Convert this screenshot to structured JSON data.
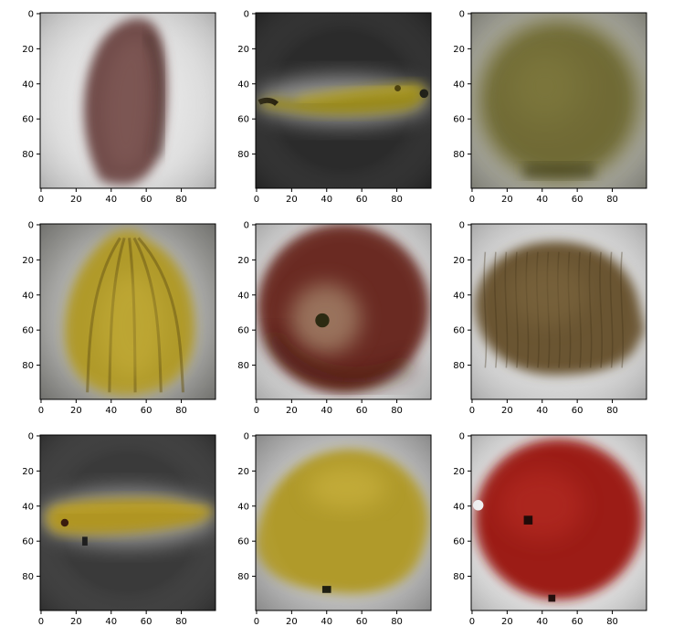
{
  "figure": {
    "layout": "3x3 grid of image subplots",
    "background": "#ffffff"
  },
  "chart_data": [
    {
      "type": "image",
      "subject": "purple elongated fruit",
      "xlim": [
        0,
        99
      ],
      "ylim": [
        99,
        0
      ],
      "xticks": [
        "0",
        "20",
        "40",
        "60",
        "80"
      ],
      "yticks": [
        "0",
        "20",
        "40",
        "60",
        "80"
      ],
      "colors": {
        "bg": "#d6d6d6",
        "fruit": "#6e4a47",
        "fruit_light": "#8e6662",
        "fruit_dark": "#3f2a28"
      }
    },
    {
      "type": "image",
      "subject": "banana, horizontal",
      "xlim": [
        0,
        99
      ],
      "ylim": [
        99,
        0
      ],
      "xticks": [
        "0",
        "20",
        "40",
        "60",
        "80"
      ],
      "yticks": [
        "0",
        "20",
        "40",
        "60",
        "80"
      ],
      "colors": {
        "bg": "#2b2b2b",
        "fruit": "#9a8a1f",
        "fruit_light": "#c8b43a",
        "fruit_dark": "#4d420e"
      }
    },
    {
      "type": "image",
      "subject": "round green-olive fruit",
      "xlim": [
        0,
        99
      ],
      "ylim": [
        99,
        0
      ],
      "xticks": [
        "0",
        "20",
        "40",
        "60",
        "80"
      ],
      "yticks": [
        "0",
        "20",
        "40",
        "60",
        "80"
      ],
      "colors": {
        "bg": "#9a9a8f",
        "fruit": "#6f6a34",
        "fruit_light": "#8a8545",
        "fruit_dark": "#3e3b1a"
      }
    },
    {
      "type": "image",
      "subject": "physalis / starfruit, yellow",
      "xlim": [
        0,
        99
      ],
      "ylim": [
        99,
        0
      ],
      "xticks": [
        "0",
        "20",
        "40",
        "60",
        "80"
      ],
      "yticks": [
        "0",
        "20",
        "40",
        "60",
        "80"
      ],
      "colors": {
        "bg": "#8a8a86",
        "fruit": "#b09a2c",
        "fruit_light": "#d4bc45",
        "fruit_dark": "#6b5a15"
      }
    },
    {
      "type": "image",
      "subject": "red apple, top view",
      "xlim": [
        0,
        99
      ],
      "ylim": [
        99,
        0
      ],
      "xticks": [
        "0",
        "20",
        "40",
        "60",
        "80"
      ],
      "yticks": [
        "0",
        "20",
        "40",
        "60",
        "80"
      ],
      "colors": {
        "bg": "#cfcfcf",
        "fruit": "#6a2a22",
        "fruit_light": "#a98a70",
        "fruit_dark": "#3a1410"
      }
    },
    {
      "type": "image",
      "subject": "kiwi",
      "xlim": [
        0,
        99
      ],
      "ylim": [
        99,
        0
      ],
      "xticks": [
        "0",
        "20",
        "40",
        "60",
        "80"
      ],
      "yticks": [
        "0",
        "20",
        "40",
        "60",
        "80"
      ],
      "colors": {
        "bg": "#cfcfcf",
        "fruit": "#6a5530",
        "fruit_light": "#8c7448",
        "fruit_dark": "#3e3018"
      }
    },
    {
      "type": "image",
      "subject": "banana, horizontal",
      "xlim": [
        0,
        99
      ],
      "ylim": [
        99,
        0
      ],
      "xticks": [
        "0",
        "20",
        "40",
        "60",
        "80"
      ],
      "yticks": [
        "0",
        "20",
        "40",
        "60",
        "80"
      ],
      "colors": {
        "bg": "#3a3a3a",
        "fruit": "#b09520",
        "fruit_light": "#cdb33a",
        "fruit_dark": "#5a4a0c"
      }
    },
    {
      "type": "image",
      "subject": "lemon",
      "xlim": [
        0,
        99
      ],
      "ylim": [
        99,
        0
      ],
      "xticks": [
        "0",
        "20",
        "40",
        "60",
        "80"
      ],
      "yticks": [
        "0",
        "20",
        "40",
        "60",
        "80"
      ],
      "colors": {
        "bg": "#a8a8a8",
        "fruit": "#b09a2a",
        "fruit_light": "#d0b844",
        "fruit_dark": "#6b5a12"
      }
    },
    {
      "type": "image",
      "subject": "red pomegranate / apple",
      "xlim": [
        0,
        99
      ],
      "ylim": [
        99,
        0
      ],
      "xticks": [
        "0",
        "20",
        "40",
        "60",
        "80"
      ],
      "yticks": [
        "0",
        "20",
        "40",
        "60",
        "80"
      ],
      "colors": {
        "bg": "#d8d8d8",
        "fruit": "#9c1c18",
        "fruit_light": "#c4352c",
        "fruit_dark": "#5a0e0c"
      }
    }
  ]
}
